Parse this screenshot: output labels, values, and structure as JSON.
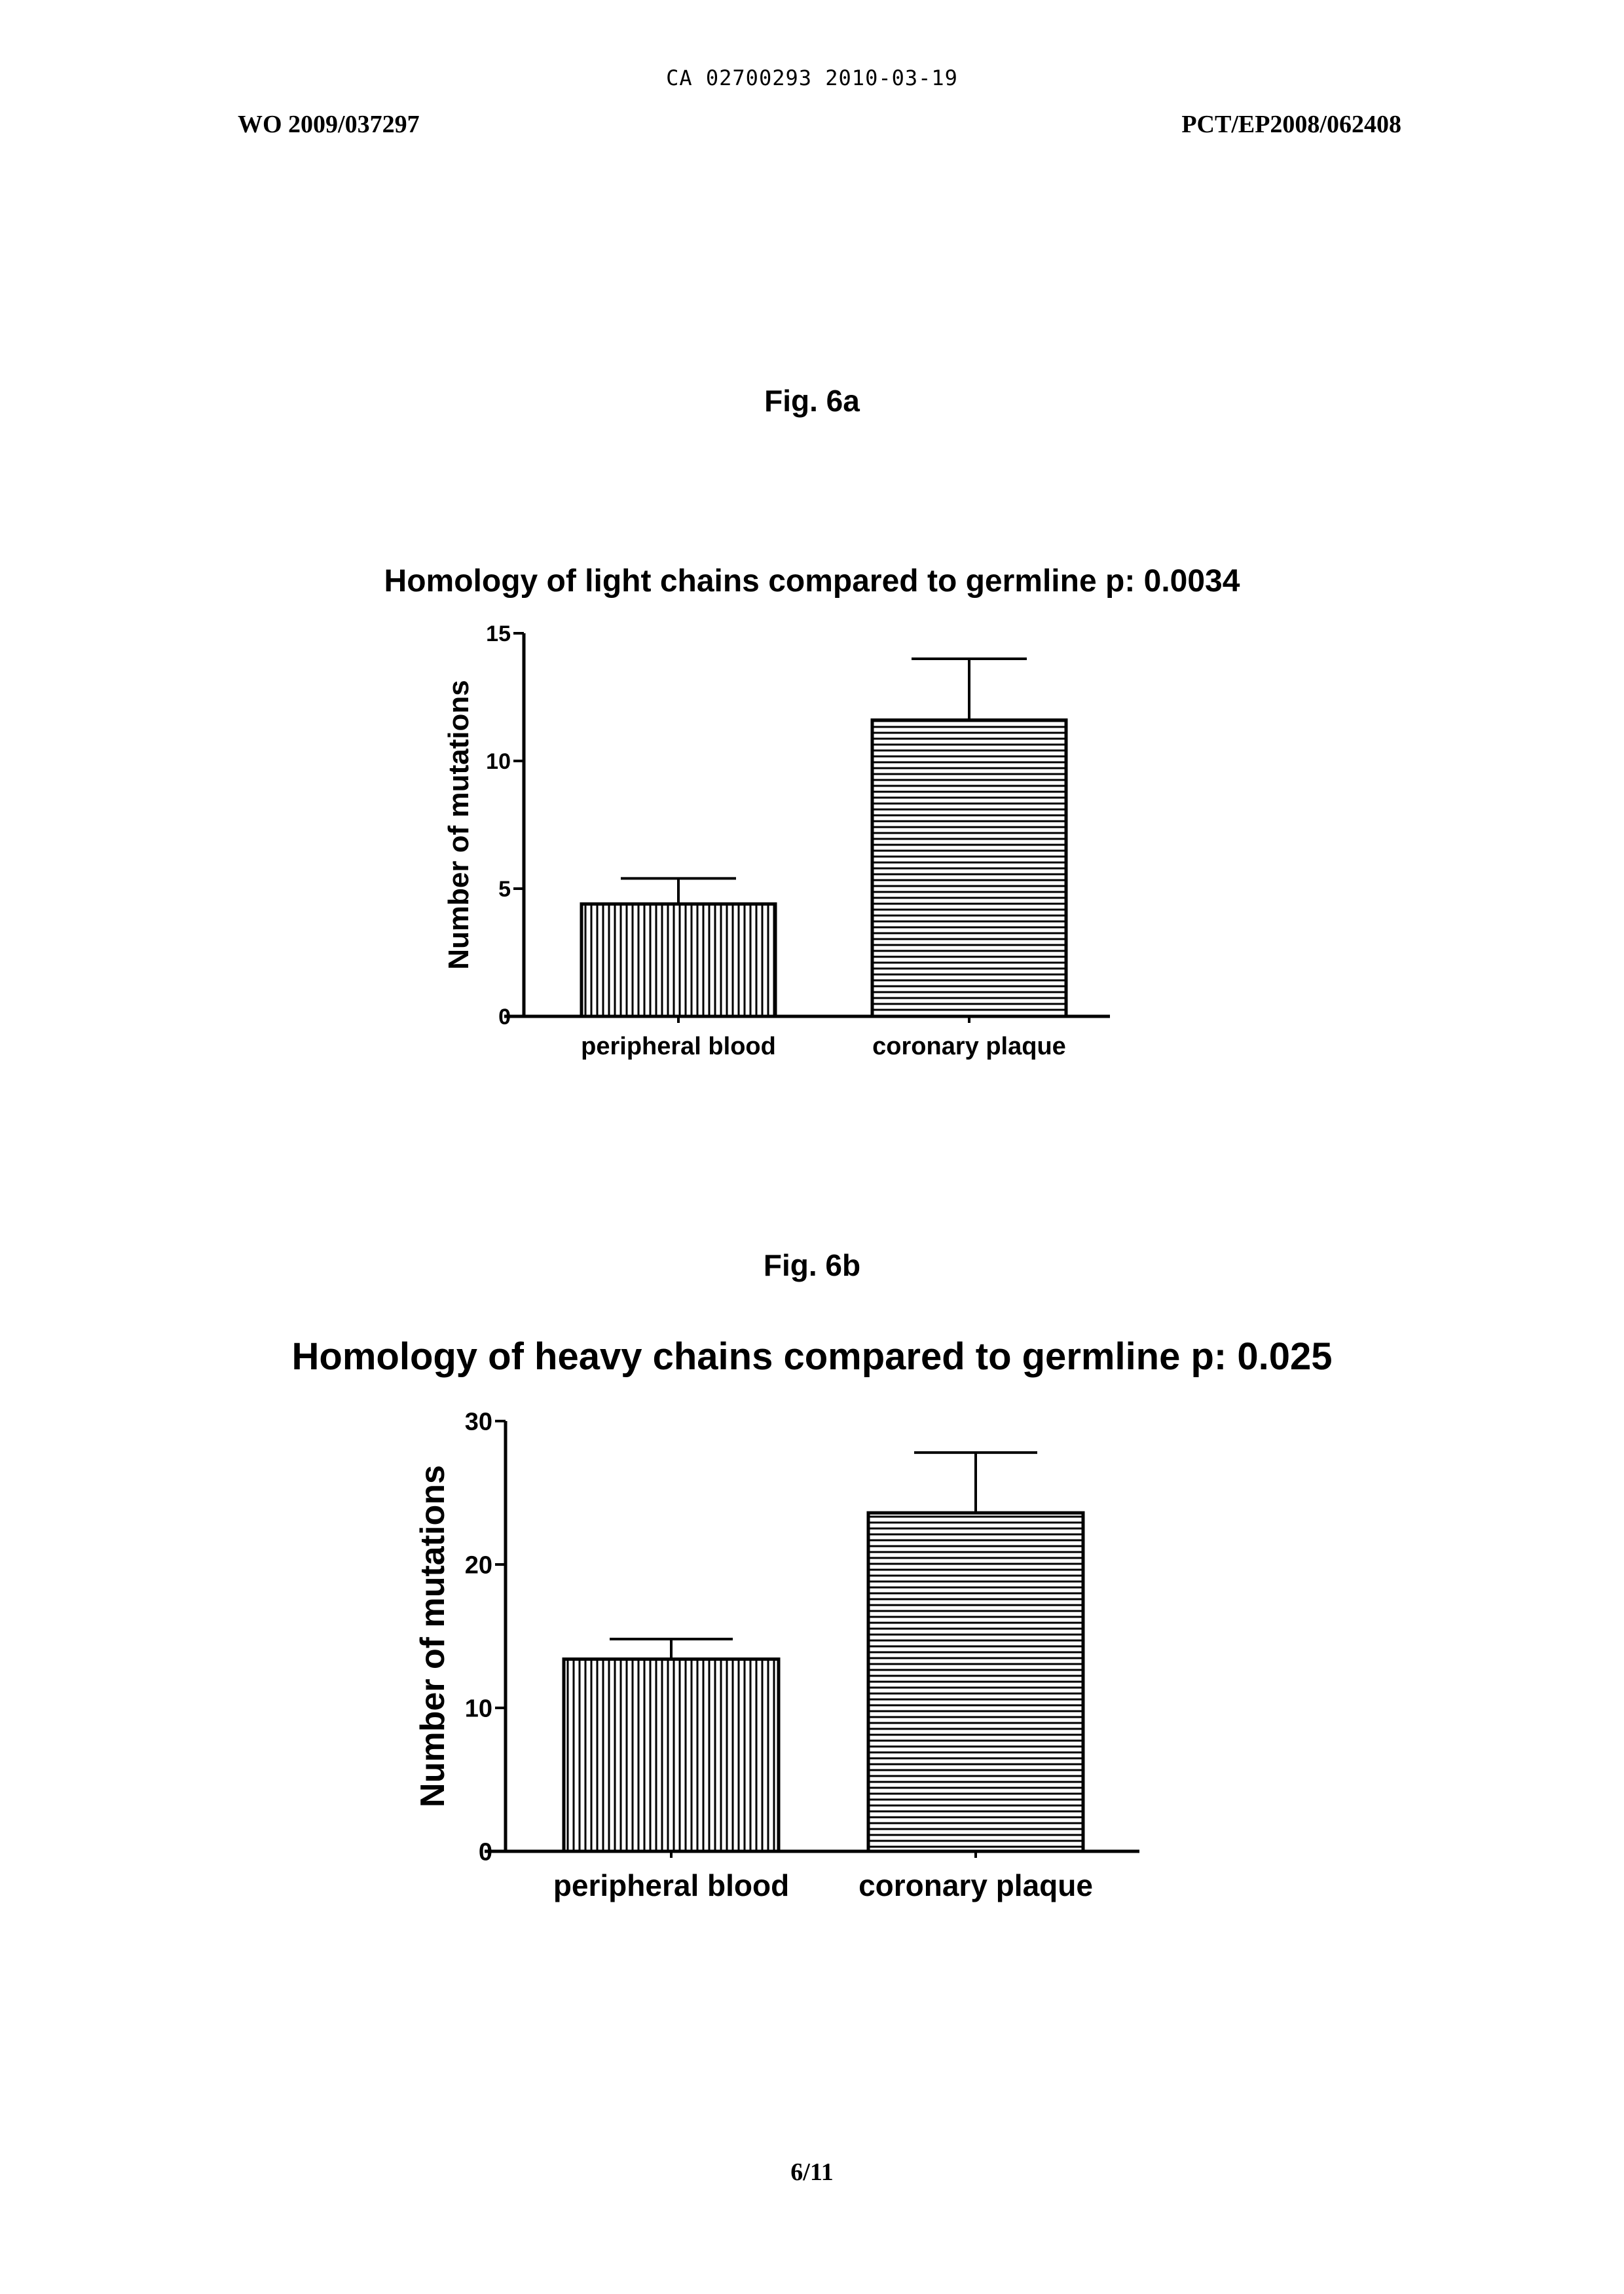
{
  "header": {
    "doc_stamp": "CA 02700293 2010-03-19",
    "publication_number": "WO 2009/037297",
    "application_number": "PCT/EP2008/062408"
  },
  "figures": {
    "fig6a_label": "Fig. 6a",
    "fig6b_label": "Fig. 6b"
  },
  "page_number": "6/11",
  "chart_data": [
    {
      "type": "bar",
      "title": "Homology of light chains compared to germline p: 0.0034",
      "xlabel": "",
      "ylabel": "Number of mutations",
      "categories": [
        "peripheral blood",
        "coronary plaque"
      ],
      "values": [
        4.4,
        11.6
      ],
      "error_bars": [
        1.0,
        2.4
      ],
      "ylim": [
        0,
        15
      ],
      "yticks": [
        0,
        5,
        10,
        15
      ],
      "bar_patterns": [
        "vertical-hatch",
        "horizontal-hatch"
      ],
      "grid": false,
      "legend": "none"
    },
    {
      "type": "bar",
      "title": "Homology of heavy chains compared to germline  p: 0.025",
      "xlabel": "",
      "ylabel": "Number of mutations",
      "categories": [
        "peripheral blood",
        "coronary plaque"
      ],
      "values": [
        13.4,
        23.6
      ],
      "error_bars": [
        1.4,
        4.2
      ],
      "ylim": [
        0,
        30
      ],
      "yticks": [
        0,
        10,
        20,
        30
      ],
      "bar_patterns": [
        "vertical-hatch",
        "horizontal-hatch"
      ],
      "grid": false,
      "legend": "none"
    }
  ]
}
